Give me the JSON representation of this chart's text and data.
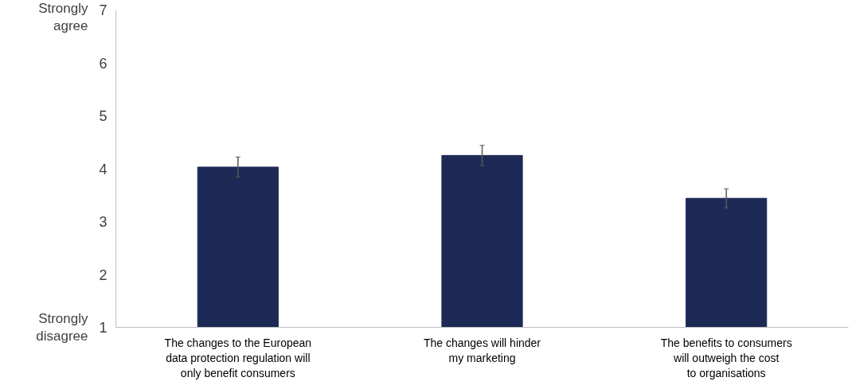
{
  "chart_data": {
    "type": "bar",
    "categories": [
      "The changes to the European\ndata protection regulation will\nonly benefit consumers",
      "The changes will hinder\nmy marketing",
      "The benefits to consumers\nwill outweigh the cost\nto organisations"
    ],
    "values": [
      4.03,
      4.25,
      3.44
    ],
    "errors": [
      0.19,
      0.19,
      0.18
    ],
    "color": "#1e2a56",
    "ylim": [
      1,
      7
    ],
    "yticks": [
      1,
      2,
      3,
      4,
      5,
      6,
      7
    ],
    "annotations": [
      "Strongly\nagree",
      "Strongly\ndisagree"
    ],
    "grid": false
  }
}
